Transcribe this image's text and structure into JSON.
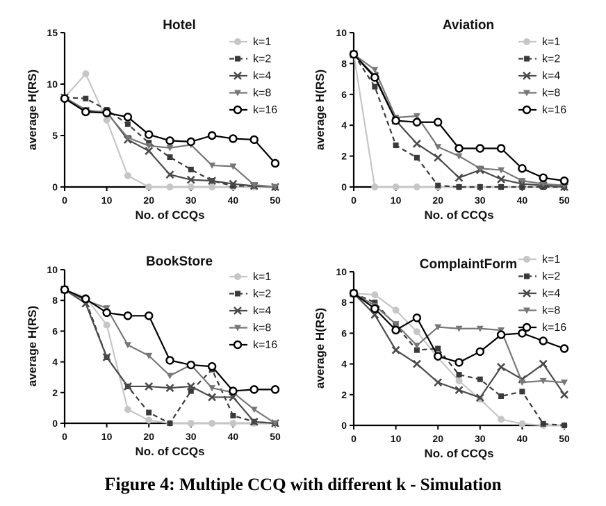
{
  "caption": {
    "label": "Figure 4:",
    "text": "Multiple CCQ with different k - Simulation"
  },
  "series_styles": [
    {
      "name": "k=1",
      "color": "#c6c6c6",
      "dash": "",
      "marker": "circle-filled"
    },
    {
      "name": "k=2",
      "color": "#3a3a3a",
      "dash": "7,5",
      "marker": "square"
    },
    {
      "name": "k=4",
      "color": "#4a4a4a",
      "dash": "",
      "marker": "x"
    },
    {
      "name": "k=8",
      "color": "#777777",
      "dash": "",
      "marker": "triangle-down"
    },
    {
      "name": "k=16",
      "color": "#000000",
      "dash": "",
      "marker": "circle-open"
    }
  ],
  "chart_data": [
    {
      "type": "line",
      "title": "Hotel",
      "xlabel": "No. of CCQs",
      "ylabel": "average H(RS)",
      "xlim": [
        0,
        50
      ],
      "ylim": [
        0,
        15
      ],
      "xticks": [
        0,
        10,
        20,
        30,
        40,
        50
      ],
      "yticks": [
        0,
        5,
        10,
        15
      ],
      "legend": "top-right",
      "x": [
        0,
        5,
        10,
        15,
        20,
        25,
        30,
        35,
        40,
        45,
        50
      ],
      "series": [
        {
          "name": "k=1",
          "values": [
            8.7,
            11.0,
            6.5,
            1.1,
            0.0,
            0.0,
            0.0,
            0.0,
            0.0,
            0.0,
            0.0
          ]
        },
        {
          "name": "k=2",
          "values": [
            8.7,
            8.6,
            7.5,
            6.1,
            4.3,
            2.9,
            1.7,
            0.6,
            0.1,
            0.1,
            0.0
          ]
        },
        {
          "name": "k=4",
          "values": [
            8.7,
            7.4,
            7.3,
            4.6,
            3.5,
            1.2,
            0.7,
            0.6,
            0.3,
            0.1,
            0.0
          ]
        },
        {
          "name": "k=8",
          "values": [
            8.7,
            7.5,
            7.2,
            4.8,
            4.0,
            3.8,
            4.1,
            2.1,
            2.0,
            0.2,
            0.0
          ]
        },
        {
          "name": "k=16",
          "values": [
            8.6,
            7.3,
            7.2,
            6.8,
            5.1,
            4.5,
            4.4,
            5.0,
            4.7,
            4.6,
            2.3
          ]
        }
      ]
    },
    {
      "type": "line",
      "title": "Aviation",
      "xlabel": "No. of CCQs",
      "ylabel": "average H(RS)",
      "xlim": [
        0,
        50
      ],
      "ylim": [
        0,
        10
      ],
      "xticks": [
        0,
        10,
        20,
        30,
        40,
        50
      ],
      "yticks": [
        0,
        2,
        4,
        6,
        8,
        10
      ],
      "legend": "top-right",
      "x": [
        0,
        5,
        10,
        15,
        20,
        25,
        30,
        35,
        40,
        45,
        50
      ],
      "series": [
        {
          "name": "k=1",
          "values": [
            8.6,
            0.0,
            0.0,
            0.0,
            0.0,
            0.0,
            0.0,
            0.0,
            0.0,
            0.0,
            0.0
          ]
        },
        {
          "name": "k=2",
          "values": [
            8.6,
            6.5,
            2.7,
            1.9,
            0.1,
            0.0,
            0.0,
            0.0,
            0.0,
            0.0,
            0.0
          ]
        },
        {
          "name": "k=4",
          "values": [
            8.6,
            7.2,
            4.3,
            2.8,
            1.9,
            0.6,
            1.1,
            0.5,
            0.2,
            0.1,
            0.0
          ]
        },
        {
          "name": "k=8",
          "values": [
            8.6,
            7.6,
            4.5,
            4.6,
            2.6,
            2.0,
            1.2,
            1.1,
            0.4,
            0.2,
            0.1
          ]
        },
        {
          "name": "k=16",
          "values": [
            8.6,
            7.1,
            4.3,
            4.2,
            4.2,
            2.5,
            2.5,
            2.5,
            1.2,
            0.6,
            0.4
          ]
        }
      ]
    },
    {
      "type": "line",
      "title": "BookStore",
      "xlabel": "No. of CCQs",
      "ylabel": "average H(RS)",
      "xlim": [
        0,
        50
      ],
      "ylim": [
        0,
        10
      ],
      "xticks": [
        0,
        10,
        20,
        30,
        40,
        50
      ],
      "yticks": [
        0,
        2,
        4,
        6,
        8,
        10
      ],
      "legend": "top-right",
      "x": [
        0,
        5,
        10,
        15,
        20,
        25,
        30,
        35,
        40,
        45,
        50
      ],
      "series": [
        {
          "name": "k=1",
          "values": [
            8.7,
            8.2,
            6.4,
            0.9,
            0.2,
            0.0,
            0.0,
            0.0,
            0.0,
            0.0,
            0.0
          ]
        },
        {
          "name": "k=2",
          "values": [
            8.7,
            8.0,
            4.3,
            2.4,
            0.7,
            0.0,
            2.1,
            3.5,
            0.5,
            0.1,
            0.0
          ]
        },
        {
          "name": "k=4",
          "values": [
            8.7,
            7.8,
            4.3,
            2.4,
            2.4,
            2.3,
            2.4,
            1.7,
            1.7,
            0.1,
            0.0
          ]
        },
        {
          "name": "k=8",
          "values": [
            8.7,
            8.0,
            7.5,
            5.1,
            4.4,
            3.1,
            3.8,
            2.3,
            2.0,
            0.9,
            0.0
          ]
        },
        {
          "name": "k=16",
          "values": [
            8.7,
            8.1,
            7.2,
            7.0,
            7.0,
            4.1,
            3.8,
            3.7,
            2.1,
            2.2,
            2.2
          ]
        }
      ]
    },
    {
      "type": "line",
      "title": "ComplaintForm",
      "xlabel": "No. of CCQs",
      "ylabel": "average H(RS)",
      "xlim": [
        0,
        50
      ],
      "ylim": [
        0,
        10
      ],
      "xticks": [
        0,
        10,
        20,
        30,
        40,
        50
      ],
      "yticks": [
        0,
        2,
        4,
        6,
        8,
        10
      ],
      "legend": "top-right",
      "x": [
        0,
        5,
        10,
        15,
        20,
        25,
        30,
        35,
        40,
        45,
        50
      ],
      "series": [
        {
          "name": "k=1",
          "values": [
            8.6,
            8.5,
            7.5,
            6.1,
            4.4,
            2.9,
            1.7,
            0.4,
            0.1,
            0.0,
            0.0
          ]
        },
        {
          "name": "k=2",
          "values": [
            8.6,
            8.0,
            6.5,
            4.9,
            5.0,
            3.3,
            3.0,
            1.9,
            2.2,
            0.1,
            0.0
          ]
        },
        {
          "name": "k=4",
          "values": [
            8.6,
            7.2,
            4.9,
            4.0,
            2.8,
            2.3,
            1.8,
            3.8,
            3.0,
            4.0,
            2.0
          ]
        },
        {
          "name": "k=8",
          "values": [
            8.6,
            7.8,
            6.6,
            5.2,
            6.4,
            6.3,
            6.3,
            6.2,
            2.8,
            2.9,
            2.8
          ]
        },
        {
          "name": "k=16",
          "values": [
            8.6,
            7.6,
            6.2,
            7.0,
            4.5,
            4.1,
            4.8,
            5.9,
            6.0,
            5.5,
            5.0
          ]
        }
      ]
    }
  ]
}
